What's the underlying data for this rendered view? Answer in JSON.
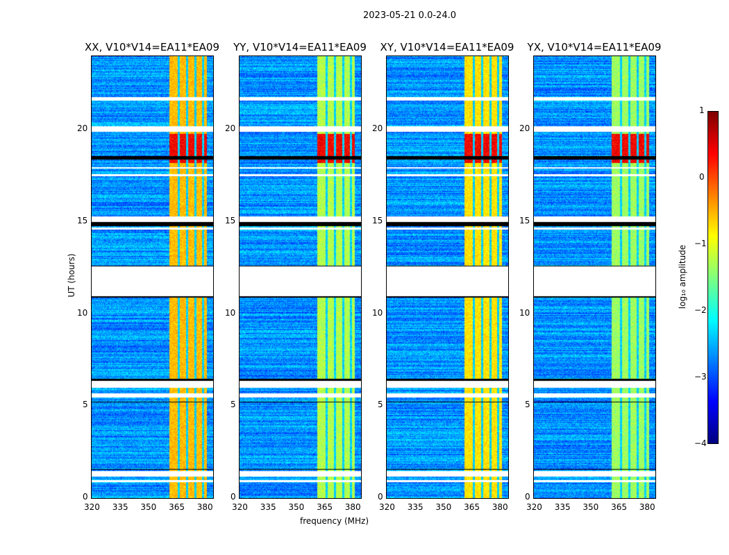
{
  "chart_data": {
    "type": "heatmap",
    "suptitle": "2023-05-21 0.0-24.0",
    "panels": [
      {
        "title": "XX, V10*V14=EA11*EA09",
        "band_level": -0.6
      },
      {
        "title": "YY, V10*V14=EA11*EA09",
        "band_level": -1.3
      },
      {
        "title": "XY, V10*V14=EA11*EA09",
        "band_level": -0.8
      },
      {
        "title": "YX, V10*V14=EA11*EA09",
        "band_level": -1.4
      }
    ],
    "xlabel": "frequency (MHz)",
    "ylabel": "UT (hours)",
    "xlim": [
      320,
      384.5
    ],
    "ylim": [
      0,
      24
    ],
    "xticks": [
      "320",
      "335",
      "350",
      "365",
      "380"
    ],
    "xtick_values": [
      320,
      335,
      350,
      365,
      380
    ],
    "yticks": [
      "0",
      "5",
      "10",
      "15",
      "20"
    ],
    "ytick_values": [
      0,
      5,
      10,
      15,
      20
    ],
    "rfi_band_mhz": [
      361,
      381
    ],
    "rfi_gaps_mhz": [
      366,
      370.5,
      375,
      379
    ],
    "strong_rfi_hours": [
      18.2,
      19.8
    ],
    "flagged_hours": [
      [
        11.0,
        12.6
      ],
      [
        21.6,
        21.8
      ],
      [
        19.9,
        20.2
      ],
      [
        17.9,
        18.0
      ],
      [
        17.5,
        17.6
      ],
      [
        15.0,
        15.3
      ],
      [
        14.6,
        14.7
      ],
      [
        6.0,
        6.4
      ],
      [
        5.5,
        5.7
      ],
      [
        1.2,
        1.5
      ],
      [
        0.9,
        1.0
      ]
    ],
    "black_hours": [
      [
        18.4,
        18.6
      ],
      [
        14.8,
        15.0
      ],
      [
        12.6,
        12.65
      ],
      [
        10.9,
        11.0
      ],
      [
        6.4,
        6.5
      ],
      [
        5.2,
        5.25
      ],
      [
        1.55,
        1.6
      ]
    ],
    "colorbar": {
      "label": "log₁₀ amplitude",
      "ticks": [
        "1",
        "0",
        "−1",
        "−2",
        "−3",
        "−4"
      ],
      "tick_values": [
        1,
        0,
        -1,
        -2,
        -3,
        -4
      ],
      "colormap": "jet"
    }
  }
}
